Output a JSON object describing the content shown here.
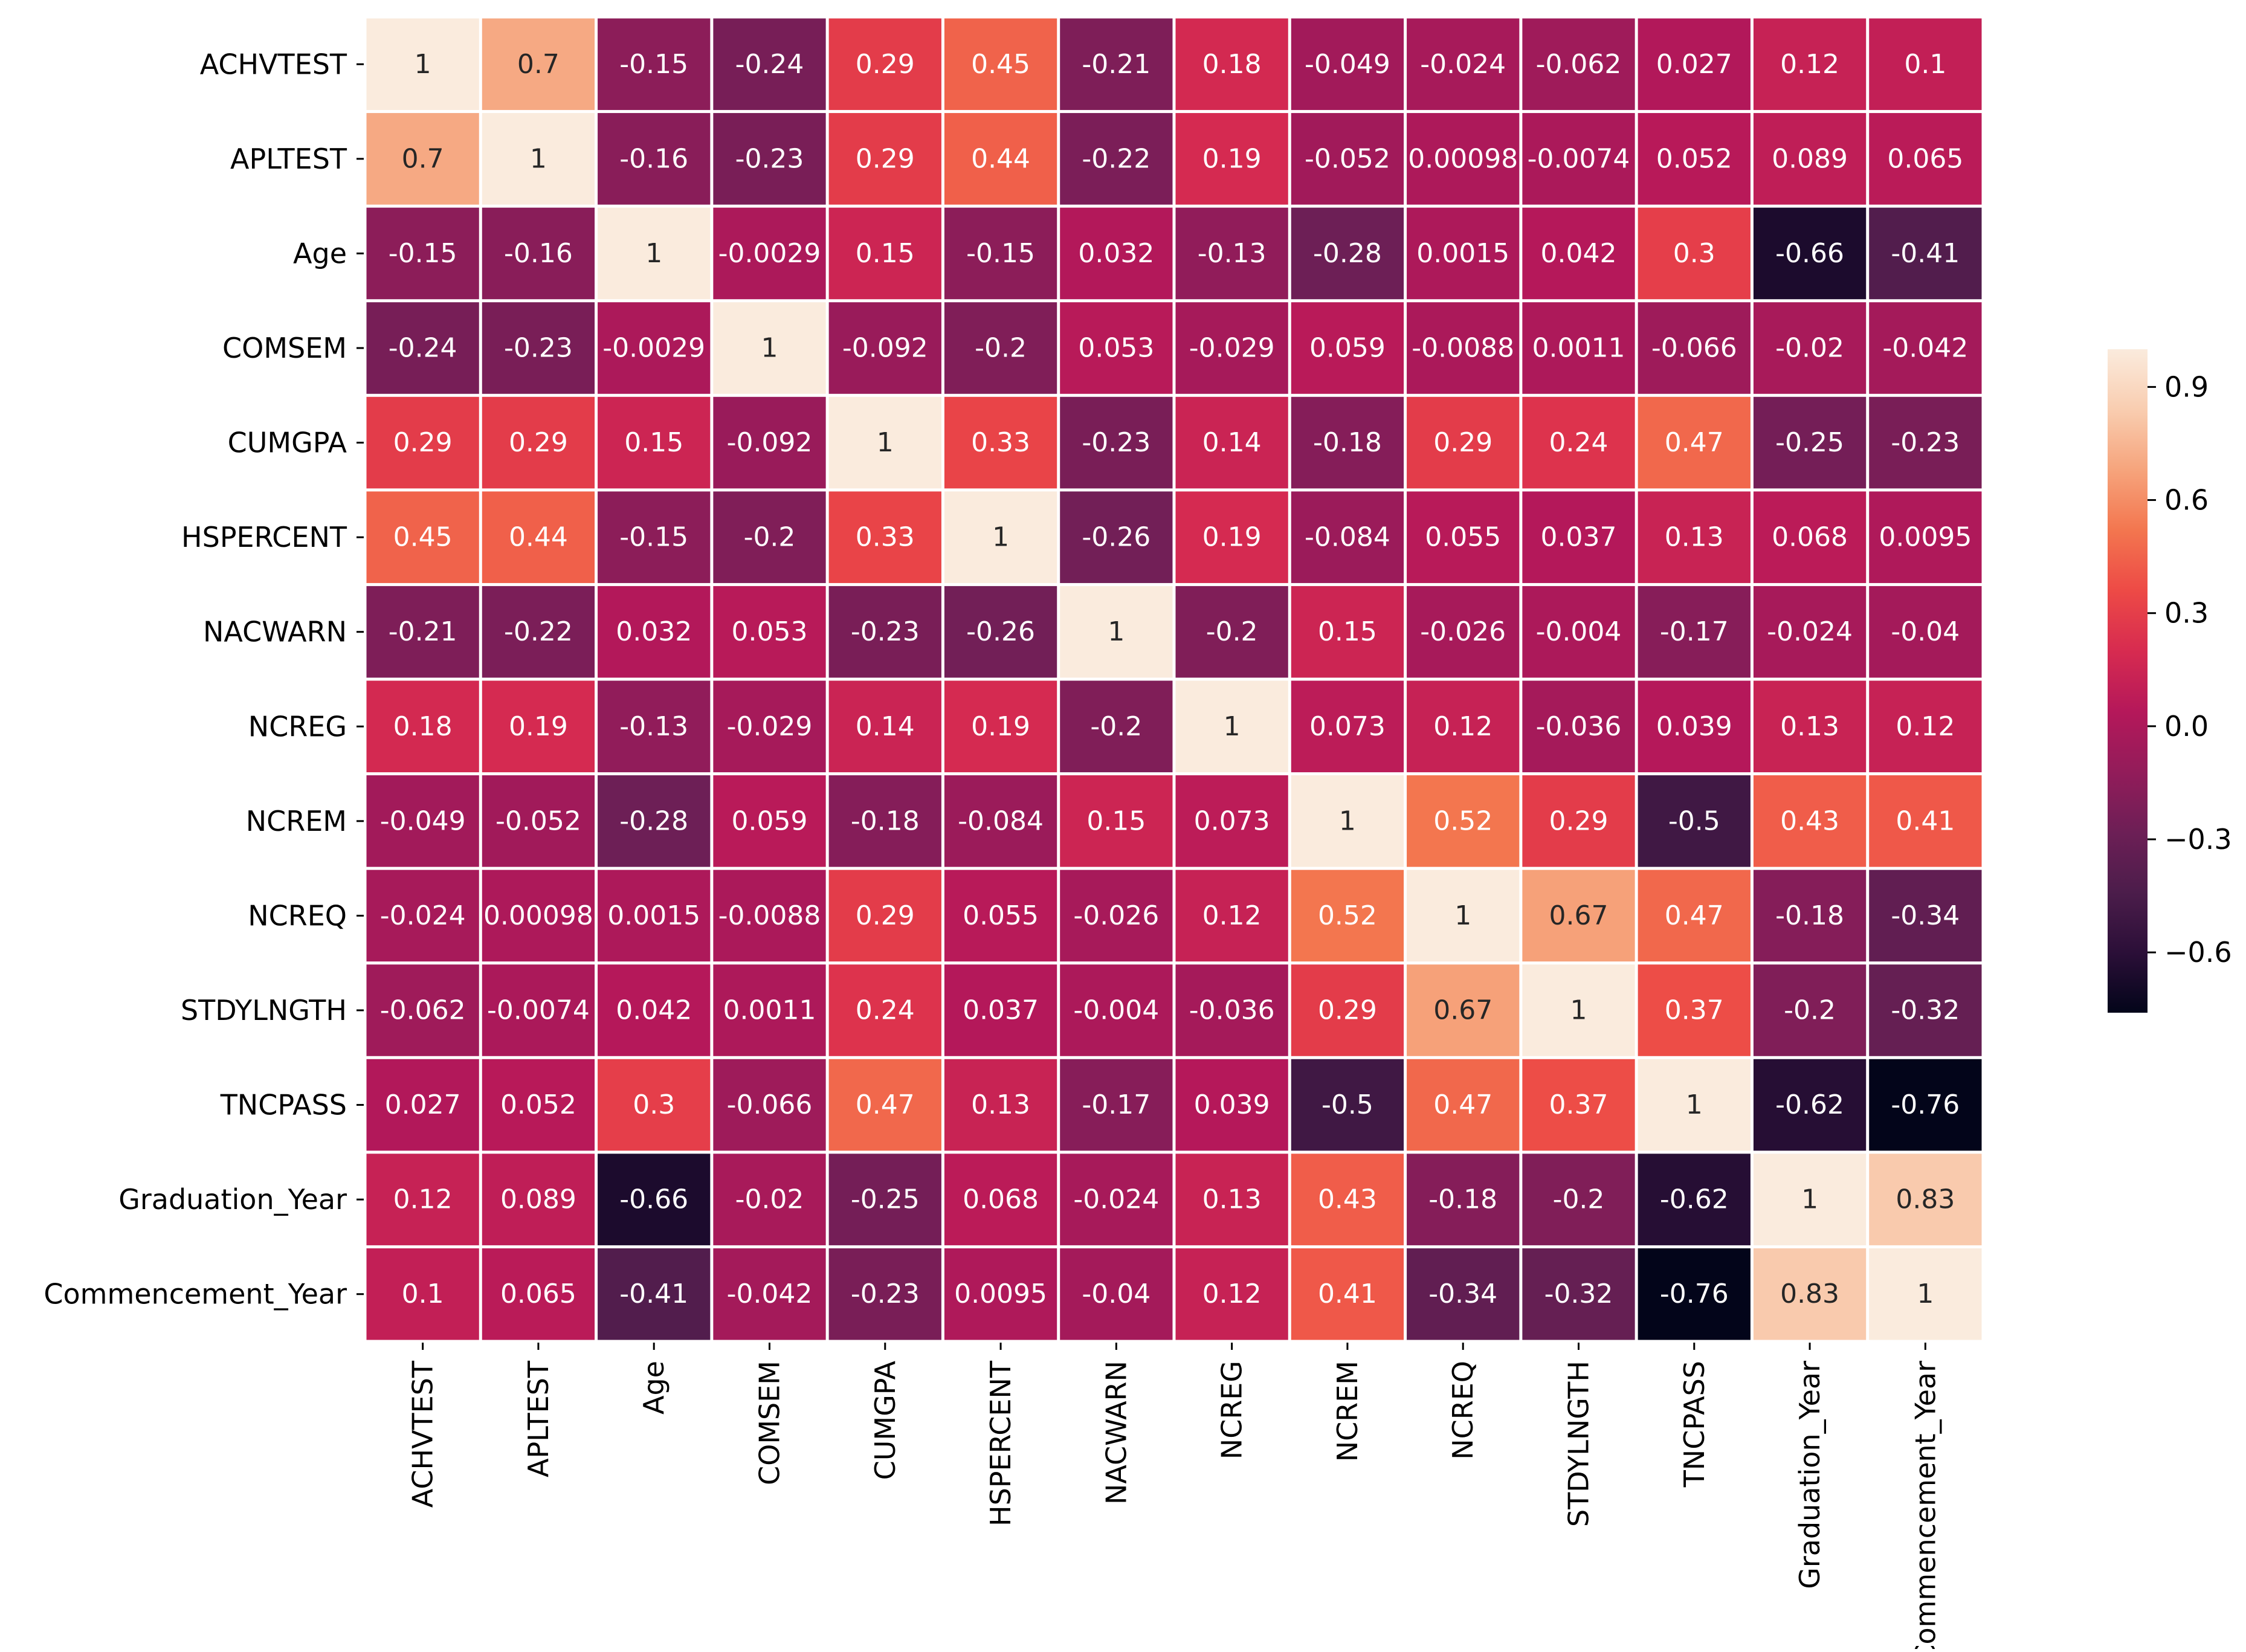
{
  "chart_data": {
    "type": "heatmap",
    "labels": [
      "ACHVTEST",
      "APLTEST",
      "Age",
      "COMSEM",
      "CUMGPA",
      "HSPERCENT",
      "NACWARN",
      "NCREG",
      "NCREM",
      "NCREQ",
      "STDYLNGTH",
      "TNCPASS",
      "Graduation_Year",
      "Commencement_Year"
    ],
    "matrix": [
      [
        1,
        0.7,
        -0.15,
        -0.24,
        0.29,
        0.45,
        -0.21,
        0.18,
        -0.049,
        -0.024,
        -0.062,
        0.027,
        0.12,
        0.1
      ],
      [
        0.7,
        1,
        -0.16,
        -0.23,
        0.29,
        0.44,
        -0.22,
        0.19,
        -0.052,
        0.00098,
        -0.0074,
        0.052,
        0.089,
        0.065
      ],
      [
        -0.15,
        -0.16,
        1,
        -0.0029,
        0.15,
        -0.15,
        0.032,
        -0.13,
        -0.28,
        0.0015,
        0.042,
        0.3,
        -0.66,
        -0.41
      ],
      [
        -0.24,
        -0.23,
        -0.0029,
        1,
        -0.092,
        -0.2,
        0.053,
        -0.029,
        0.059,
        -0.0088,
        0.0011,
        -0.066,
        -0.02,
        -0.042
      ],
      [
        0.29,
        0.29,
        0.15,
        -0.092,
        1,
        0.33,
        -0.23,
        0.14,
        -0.18,
        0.29,
        0.24,
        0.47,
        -0.25,
        -0.23
      ],
      [
        0.45,
        0.44,
        -0.15,
        -0.2,
        0.33,
        1,
        -0.26,
        0.19,
        -0.084,
        0.055,
        0.037,
        0.13,
        0.068,
        0.0095
      ],
      [
        -0.21,
        -0.22,
        0.032,
        0.053,
        -0.23,
        -0.26,
        1,
        -0.2,
        0.15,
        -0.026,
        -0.004,
        -0.17,
        -0.024,
        -0.04
      ],
      [
        0.18,
        0.19,
        -0.13,
        -0.029,
        0.14,
        0.19,
        -0.2,
        1,
        0.073,
        0.12,
        -0.036,
        0.039,
        0.13,
        0.12
      ],
      [
        -0.049,
        -0.052,
        -0.28,
        0.059,
        -0.18,
        -0.084,
        0.15,
        0.073,
        1,
        0.52,
        0.29,
        -0.5,
        0.43,
        0.41
      ],
      [
        -0.024,
        0.00098,
        0.0015,
        -0.0088,
        0.29,
        0.055,
        -0.026,
        0.12,
        0.52,
        1,
        0.67,
        0.47,
        -0.18,
        -0.34
      ],
      [
        -0.062,
        -0.0074,
        0.042,
        0.0011,
        0.24,
        0.037,
        -0.004,
        -0.036,
        0.29,
        0.67,
        1,
        0.37,
        -0.2,
        -0.32
      ],
      [
        0.027,
        0.052,
        0.3,
        -0.066,
        0.47,
        0.13,
        -0.17,
        0.039,
        -0.5,
        0.47,
        0.37,
        1,
        -0.62,
        -0.76
      ],
      [
        0.12,
        0.089,
        -0.66,
        -0.02,
        -0.25,
        0.068,
        -0.024,
        0.13,
        0.43,
        -0.18,
        -0.2,
        -0.62,
        1,
        0.83
      ],
      [
        0.1,
        0.065,
        -0.41,
        -0.042,
        -0.23,
        0.0095,
        -0.04,
        0.12,
        0.41,
        -0.34,
        -0.32,
        -0.76,
        0.83,
        1
      ]
    ],
    "colorbar": {
      "range": [
        -0.76,
        1
      ],
      "ticks": [
        0.9,
        0.6,
        0.3,
        0.0,
        -0.3,
        -0.6
      ],
      "tick_labels": [
        "0.9",
        "0.6",
        "0.3",
        "0.0",
        "−0.3",
        "−0.6"
      ],
      "colormap": "rocket"
    },
    "title": "",
    "xlabel": "",
    "ylabel": ""
  },
  "colors": {
    "cell_border": "#ffffff",
    "axis_text": "#000000",
    "light_cell_text": "#262626",
    "dark_cell_text": "#ffffff",
    "colormap_stops": [
      "#03051a",
      "#2b0f38",
      "#4c1d4b",
      "#6d1f56",
      "#931c5a",
      "#b5185a",
      "#d72b50",
      "#ed4a46",
      "#f3764f",
      "#f6a47c",
      "#f9cdb0",
      "#faebdd"
    ]
  }
}
